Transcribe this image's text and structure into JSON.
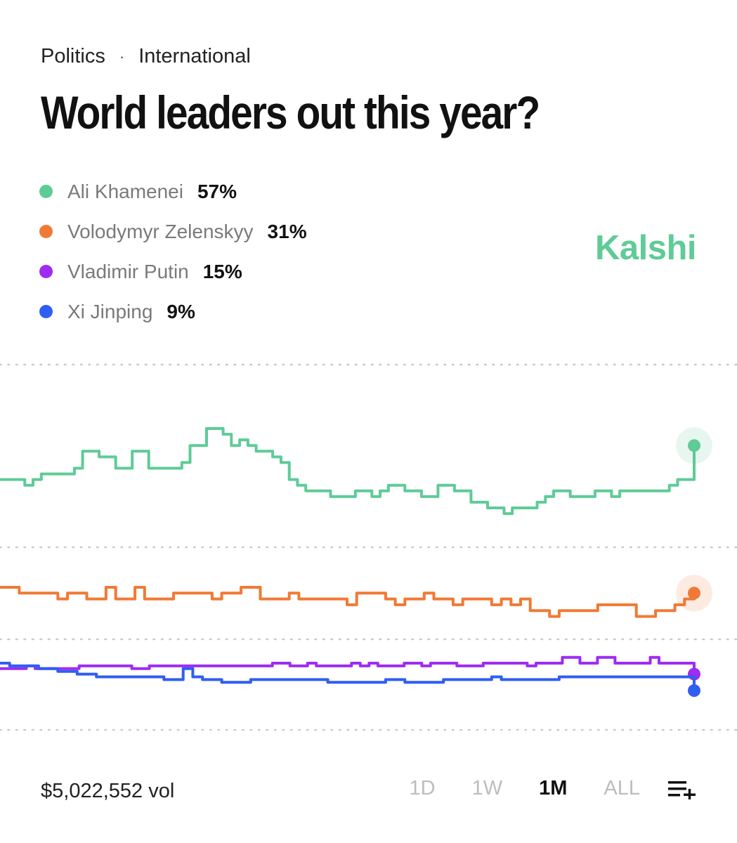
{
  "breadcrumb": {
    "category": "Politics",
    "separator": "·",
    "subcategory": "International"
  },
  "title": "World leaders out this year?",
  "brand": "Kalshi",
  "legend": [
    {
      "name": "Ali Khamenei",
      "pct": "57%",
      "color": "#5fcb97"
    },
    {
      "name": "Volodymyr Zelenskyy",
      "pct": "31%",
      "color": "#f07a35"
    },
    {
      "name": "Vladimir Putin",
      "pct": "15%",
      "color": "#9f2cf2"
    },
    {
      "name": "Xi Jinping",
      "pct": "9%",
      "color": "#2f5ef2"
    }
  ],
  "footer": {
    "volume": "$5,022,552 vol",
    "ranges": [
      {
        "label": "1D",
        "active": false
      },
      {
        "label": "1W",
        "active": false
      },
      {
        "label": "1M",
        "active": true
      },
      {
        "label": "ALL",
        "active": false
      }
    ],
    "add_icon": "add-to-list-icon"
  },
  "chart_data": {
    "type": "line",
    "grid": "dotted horizontal",
    "ylim": [
      0,
      100
    ],
    "series": [
      {
        "name": "Ali Khamenei",
        "color": "#5fcb97",
        "values": [
          51,
          51,
          51,
          50,
          51,
          52,
          52,
          52,
          52,
          53,
          56,
          56,
          55,
          55,
          53,
          53,
          56,
          56,
          53,
          53,
          53,
          53,
          54,
          57,
          57,
          60,
          60,
          59,
          57,
          58,
          57,
          56,
          56,
          55,
          54,
          51,
          50,
          49,
          49,
          49,
          48,
          48,
          48,
          49,
          49,
          48,
          49,
          50,
          50,
          49,
          49,
          48,
          48,
          50,
          50,
          49,
          49,
          47,
          47,
          46,
          46,
          45,
          46,
          46,
          46,
          47,
          48,
          49,
          49,
          48,
          48,
          48,
          49,
          49,
          48,
          49,
          49,
          49,
          49,
          49,
          49,
          50,
          51,
          51,
          57
        ]
      },
      {
        "name": "Volodymyr Zelenskyy",
        "color": "#f07a35",
        "values": [
          32,
          32,
          31,
          31,
          31,
          31,
          30,
          31,
          31,
          30,
          30,
          32,
          30,
          30,
          32,
          30,
          30,
          30,
          31,
          31,
          31,
          31,
          30,
          31,
          31,
          32,
          32,
          30,
          30,
          30,
          31,
          30,
          30,
          30,
          30,
          30,
          29,
          31,
          31,
          31,
          30,
          29,
          30,
          30,
          31,
          30,
          30,
          29,
          30,
          30,
          30,
          29,
          30,
          29,
          30,
          28,
          28,
          27,
          28,
          28,
          28,
          28,
          29,
          29,
          29,
          29,
          27,
          27,
          28,
          28,
          29,
          30,
          31
        ]
      },
      {
        "name": "Vladimir Putin",
        "color": "#9f2cf2",
        "values": [
          17,
          17,
          17,
          18,
          17,
          17,
          17,
          17,
          17,
          18,
          18,
          18,
          18,
          18,
          18,
          17,
          17,
          18,
          18,
          18,
          18,
          18,
          18,
          18,
          18,
          18,
          18,
          18,
          18,
          18,
          18,
          19,
          19,
          18,
          18,
          19,
          18,
          18,
          18,
          18,
          19,
          18,
          19,
          18,
          18,
          18,
          19,
          19,
          18,
          19,
          19,
          19,
          18,
          18,
          18,
          19,
          19,
          19,
          19,
          19,
          18,
          19,
          19,
          19,
          20,
          20,
          19,
          19,
          20,
          20,
          19,
          19,
          19,
          19,
          20,
          19,
          19,
          19,
          19,
          15
        ]
      },
      {
        "name": "Xi Jinping",
        "color": "#2f5ef2",
        "values": [
          19,
          18,
          18,
          18,
          17,
          17,
          16,
          16,
          15,
          15,
          14,
          14,
          14,
          14,
          14,
          14,
          14,
          13,
          13,
          17,
          14,
          13,
          13,
          12,
          12,
          12,
          13,
          13,
          13,
          13,
          13,
          13,
          13,
          13,
          12,
          12,
          12,
          12,
          12,
          12,
          13,
          13,
          12,
          12,
          12,
          12,
          13,
          13,
          13,
          13,
          13,
          14,
          13,
          13,
          13,
          13,
          13,
          13,
          14,
          14,
          14,
          14,
          14,
          14,
          14,
          14,
          14,
          14,
          14,
          14,
          14,
          14,
          9
        ]
      }
    ]
  }
}
